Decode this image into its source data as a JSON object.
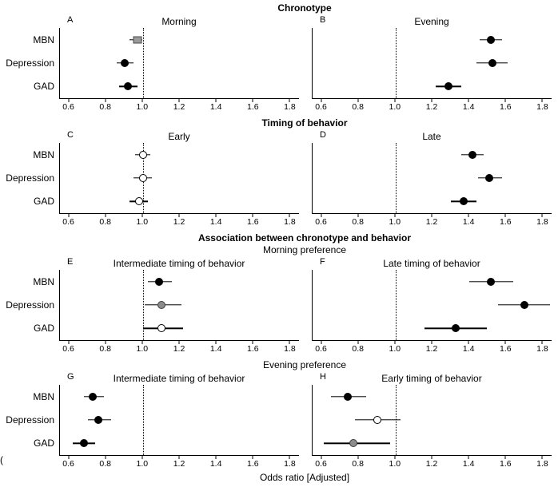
{
  "stray_glyph": "(",
  "chart_data": {
    "type": "scatter",
    "chart_kind": "forest-plot",
    "xlabel": "Odds ratio [Adjusted]",
    "x_ticks": [
      0.6,
      0.8,
      1.0,
      1.2,
      1.4,
      1.6,
      1.8
    ],
    "xlim": [
      0.55,
      1.85
    ],
    "reference_line": 1.0,
    "grid": false,
    "categories": [
      "MBN",
      "Depression",
      "GAD"
    ],
    "marker_colors": {
      "filled": "#000000",
      "open": "#ffffff",
      "gray": "#8c8c8c"
    },
    "sections": [
      {
        "title": "Chronotype",
        "subtitle": "",
        "panels": [
          {
            "label": "A",
            "title": "Morning",
            "points": [
              {
                "category": "MBN",
                "or": 0.97,
                "ci_low": 0.93,
                "ci_high": 1.0,
                "marker": "gray-square"
              },
              {
                "category": "Depression",
                "or": 0.9,
                "ci_low": 0.86,
                "ci_high": 0.95,
                "marker": "filled"
              },
              {
                "category": "GAD",
                "or": 0.92,
                "ci_low": 0.87,
                "ci_high": 0.97,
                "marker": "filled"
              }
            ]
          },
          {
            "label": "B",
            "title": "Evening",
            "points": [
              {
                "category": "MBN",
                "or": 1.52,
                "ci_low": 1.46,
                "ci_high": 1.58,
                "marker": "filled"
              },
              {
                "category": "Depression",
                "or": 1.53,
                "ci_low": 1.44,
                "ci_high": 1.61,
                "marker": "filled"
              },
              {
                "category": "GAD",
                "or": 1.29,
                "ci_low": 1.22,
                "ci_high": 1.36,
                "marker": "filled"
              }
            ]
          }
        ]
      },
      {
        "title": "Timing of behavior",
        "subtitle": "",
        "panels": [
          {
            "label": "C",
            "title": "Early",
            "points": [
              {
                "category": "MBN",
                "or": 1.0,
                "ci_low": 0.96,
                "ci_high": 1.04,
                "marker": "open"
              },
              {
                "category": "Depression",
                "or": 1.0,
                "ci_low": 0.95,
                "ci_high": 1.05,
                "marker": "open"
              },
              {
                "category": "GAD",
                "or": 0.98,
                "ci_low": 0.93,
                "ci_high": 1.03,
                "marker": "open"
              }
            ]
          },
          {
            "label": "D",
            "title": "Late",
            "points": [
              {
                "category": "MBN",
                "or": 1.42,
                "ci_low": 1.36,
                "ci_high": 1.48,
                "marker": "filled"
              },
              {
                "category": "Depression",
                "or": 1.51,
                "ci_low": 1.45,
                "ci_high": 1.58,
                "marker": "filled"
              },
              {
                "category": "GAD",
                "or": 1.37,
                "ci_low": 1.3,
                "ci_high": 1.44,
                "marker": "filled"
              }
            ]
          }
        ]
      },
      {
        "title": "Association between chronotype and behavior",
        "subtitle": "Morning preference",
        "panels": [
          {
            "label": "E",
            "title": "Intermediate timing of behavior",
            "points": [
              {
                "category": "MBN",
                "or": 1.09,
                "ci_low": 1.03,
                "ci_high": 1.16,
                "marker": "filled"
              },
              {
                "category": "Depression",
                "or": 1.1,
                "ci_low": 1.01,
                "ci_high": 1.21,
                "marker": "gray"
              },
              {
                "category": "GAD",
                "or": 1.1,
                "ci_low": 1.0,
                "ci_high": 1.22,
                "marker": "open"
              }
            ]
          },
          {
            "label": "F",
            "title": "Late timing of behavior",
            "points": [
              {
                "category": "MBN",
                "or": 1.52,
                "ci_low": 1.4,
                "ci_high": 1.64,
                "marker": "filled"
              },
              {
                "category": "Depression",
                "or": 1.7,
                "ci_low": 1.56,
                "ci_high": 1.84,
                "marker": "filled"
              },
              {
                "category": "GAD",
                "or": 1.33,
                "ci_low": 1.16,
                "ci_high": 1.5,
                "marker": "filled"
              }
            ]
          }
        ]
      },
      {
        "title": "",
        "subtitle": "Evening preference",
        "panels": [
          {
            "label": "G",
            "title": "Intermediate timing of behavior",
            "points": [
              {
                "category": "MBN",
                "or": 0.73,
                "ci_low": 0.68,
                "ci_high": 0.79,
                "marker": "filled"
              },
              {
                "category": "Depression",
                "or": 0.76,
                "ci_low": 0.7,
                "ci_high": 0.83,
                "marker": "filled"
              },
              {
                "category": "GAD",
                "or": 0.68,
                "ci_low": 0.62,
                "ci_high": 0.74,
                "marker": "filled"
              }
            ]
          },
          {
            "label": "H",
            "title": "Early timing of behavior",
            "points": [
              {
                "category": "MBN",
                "or": 0.74,
                "ci_low": 0.65,
                "ci_high": 0.84,
                "marker": "filled"
              },
              {
                "category": "Depression",
                "or": 0.9,
                "ci_low": 0.78,
                "ci_high": 1.03,
                "marker": "open"
              },
              {
                "category": "GAD",
                "or": 0.77,
                "ci_low": 0.61,
                "ci_high": 0.97,
                "marker": "gray"
              }
            ]
          }
        ]
      }
    ]
  }
}
